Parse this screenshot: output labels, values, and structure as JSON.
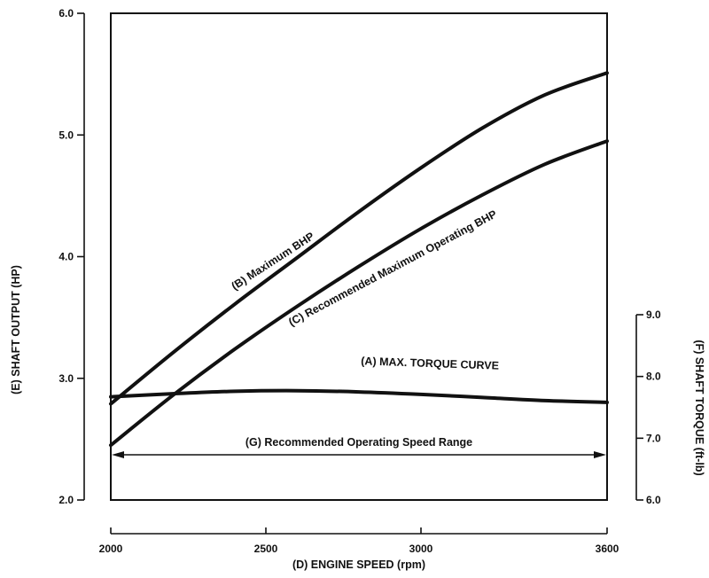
{
  "chart_data": {
    "type": "line",
    "x_axis": {
      "label": "(D) ENGINE SPEED (rpm)",
      "ticks": [
        2000,
        2500,
        3000,
        3600
      ],
      "range": [
        2000,
        3600
      ]
    },
    "y_axis_left": {
      "label": "(E) SHAFT OUTPUT (HP)",
      "ticks": [
        "2.0",
        "3.0",
        "4.0",
        "5.0",
        "6.0"
      ],
      "range": [
        2.0,
        6.0
      ]
    },
    "y_axis_right": {
      "label": "(F) SHAFT TORQUE (ft-lb)",
      "ticks": [
        "6.0",
        "7.0",
        "8.0",
        "9.0"
      ],
      "range": [
        6.0,
        9.0
      ]
    },
    "series": [
      {
        "name": "(B) Maximum BHP",
        "axis": "left",
        "x": [
          2000,
          2200,
          2400,
          2600,
          2800,
          3000,
          3200,
          3400,
          3600
        ],
        "y": [
          2.79,
          3.21,
          3.61,
          3.99,
          4.37,
          4.73,
          5.06,
          5.33,
          5.51
        ]
      },
      {
        "name": "(C) Recommended Maximum Operating BHP",
        "axis": "left",
        "x": [
          2000,
          2200,
          2400,
          2600,
          2800,
          3000,
          3200,
          3400,
          3600
        ],
        "y": [
          2.45,
          2.86,
          3.24,
          3.59,
          3.92,
          4.23,
          4.51,
          4.76,
          4.95
        ]
      },
      {
        "name": "(A) MAX. TORQUE CURVE",
        "axis": "right",
        "x": [
          2000,
          2200,
          2400,
          2600,
          2800,
          3000,
          3200,
          3400,
          3600
        ],
        "y": [
          7.67,
          7.72,
          7.76,
          7.77,
          7.75,
          7.71,
          7.66,
          7.61,
          7.58
        ]
      }
    ],
    "annotations": [
      {
        "text": "(G) Recommended Operating Speed Range",
        "type": "double-arrow",
        "x_range": [
          2000,
          3600
        ]
      }
    ],
    "grid": false
  }
}
